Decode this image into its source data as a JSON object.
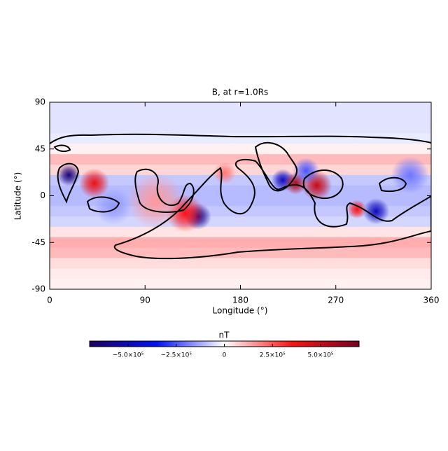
{
  "chart_data": {
    "type": "heatmap",
    "title": "B, at r=1.0Rs",
    "x_label": "Longitude (°)",
    "y_label": "Latitude (°)",
    "xlim": [
      0,
      360
    ],
    "xticks": [
      0,
      90,
      180,
      270,
      360
    ],
    "ylim": [
      -90,
      90
    ],
    "yticks": [
      -90,
      -45,
      0,
      45,
      90
    ],
    "band_edges": [
      90,
      80,
      70,
      60,
      50,
      40,
      30,
      20,
      10,
      0,
      -10,
      -20,
      -30,
      -40,
      -50,
      -60,
      -70,
      -80,
      -90
    ],
    "band_values": [
      -40000,
      -40000,
      -40000,
      -30000,
      20000,
      100000,
      60000,
      -80000,
      -100000,
      -100000,
      -80000,
      -60000,
      40000,
      120000,
      100000,
      50000,
      30000,
      20000
    ],
    "blobs": [
      {
        "x": 18,
        "y": 20,
        "value": -650000,
        "r": 6
      },
      {
        "x": 42,
        "y": 12,
        "value": 400000,
        "r": 8
      },
      {
        "x": 140,
        "y": -20,
        "value": -600000,
        "r": 7
      },
      {
        "x": 128,
        "y": -17,
        "value": 350000,
        "r": 10
      },
      {
        "x": 220,
        "y": 15,
        "value": -500000,
        "r": 6
      },
      {
        "x": 232,
        "y": 12,
        "value": 550000,
        "r": 6
      },
      {
        "x": 252,
        "y": 10,
        "value": 500000,
        "r": 8
      },
      {
        "x": 242,
        "y": 24,
        "value": -250000,
        "r": 7
      },
      {
        "x": 308,
        "y": -15,
        "value": -500000,
        "r": 7
      },
      {
        "x": 290,
        "y": -13,
        "value": 350000,
        "r": 5
      },
      {
        "x": 100,
        "y": -5,
        "value": 150000,
        "r": 15
      },
      {
        "x": 165,
        "y": 22,
        "value": 200000,
        "r": 6
      },
      {
        "x": 340,
        "y": 20,
        "value": -200000,
        "r": 10
      },
      {
        "x": 60,
        "y": -10,
        "value": -150000,
        "r": 10
      }
    ],
    "colormap": [
      "#1e0060",
      "#0010ff",
      "#ffffff",
      "#ff1010",
      "#7a0020"
    ],
    "colorbar_label": "nT",
    "clim": [
      -700000,
      700000
    ],
    "colorbar_ticks": [
      {
        "value": -500000,
        "label": "−5.0×10⁵"
      },
      {
        "value": -250000,
        "label": "−2.5×10⁵"
      },
      0,
      {
        "value": 250000,
        "label": "2.5×10⁵"
      },
      {
        "value": 500000,
        "label": "5.0×10⁵"
      }
    ]
  }
}
